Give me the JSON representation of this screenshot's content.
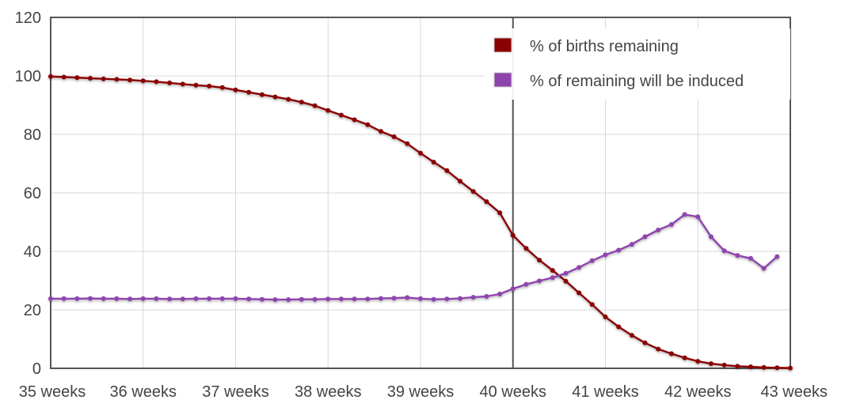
{
  "chart_data": {
    "type": "line",
    "title": "",
    "xlabel": "",
    "ylabel": "",
    "ylim": [
      0,
      120
    ],
    "xlim": [
      35,
      43
    ],
    "x_ticks": [
      {
        "value": 35,
        "label": "35 weeks"
      },
      {
        "value": 36,
        "label": "36 weeks"
      },
      {
        "value": 37,
        "label": "37 weeks"
      },
      {
        "value": 38,
        "label": "38 weeks"
      },
      {
        "value": 39,
        "label": "39 weeks"
      },
      {
        "value": 40,
        "label": "40 weeks"
      },
      {
        "value": 41,
        "label": "41 weeks"
      },
      {
        "value": 42,
        "label": "42 weeks"
      },
      {
        "value": 43,
        "label": "43 weeks"
      }
    ],
    "y_ticks": [
      "0",
      "20",
      "40",
      "60",
      "80",
      "100",
      "120"
    ],
    "grid": true,
    "legend_position": "top-right",
    "reference_line_x": 40,
    "x_step": 0.142857,
    "series": [
      {
        "name": "% of births remaining",
        "color": "#8b0000",
        "values": [
          99.8,
          99.6,
          99.4,
          99.2,
          99.0,
          98.8,
          98.6,
          98.3,
          98.0,
          97.6,
          97.2,
          96.8,
          96.5,
          96.0,
          95.2,
          94.4,
          93.6,
          92.8,
          92.0,
          91.0,
          89.8,
          88.2,
          86.6,
          85.0,
          83.3,
          81.0,
          79.2,
          76.8,
          73.6,
          70.5,
          67.6,
          64.0,
          60.5,
          57.0,
          53.2,
          45.5,
          41.0,
          37.0,
          33.5,
          29.8,
          25.8,
          21.8,
          17.6,
          14.2,
          11.3,
          8.7,
          6.6,
          5.0,
          3.6,
          2.4,
          1.6,
          1.1,
          0.7,
          0.5,
          0.3,
          0.2,
          0.1
        ]
      },
      {
        "name": "% of remaining will be induced",
        "color": "#8e44ad",
        "values": [
          23.8,
          23.8,
          23.8,
          23.9,
          23.8,
          23.8,
          23.7,
          23.8,
          23.8,
          23.7,
          23.7,
          23.8,
          23.8,
          23.8,
          23.8,
          23.7,
          23.6,
          23.5,
          23.5,
          23.6,
          23.6,
          23.7,
          23.7,
          23.7,
          23.7,
          23.9,
          24.0,
          24.2,
          23.8,
          23.6,
          23.7,
          23.9,
          24.3,
          24.6,
          25.4,
          27.2,
          28.7,
          29.9,
          31.0,
          32.5,
          34.5,
          36.8,
          38.8,
          40.4,
          42.4,
          45.0,
          47.3,
          49.2,
          52.6,
          51.8,
          45.0,
          40.2,
          38.6,
          37.6,
          34.2,
          38.2
        ]
      }
    ]
  }
}
